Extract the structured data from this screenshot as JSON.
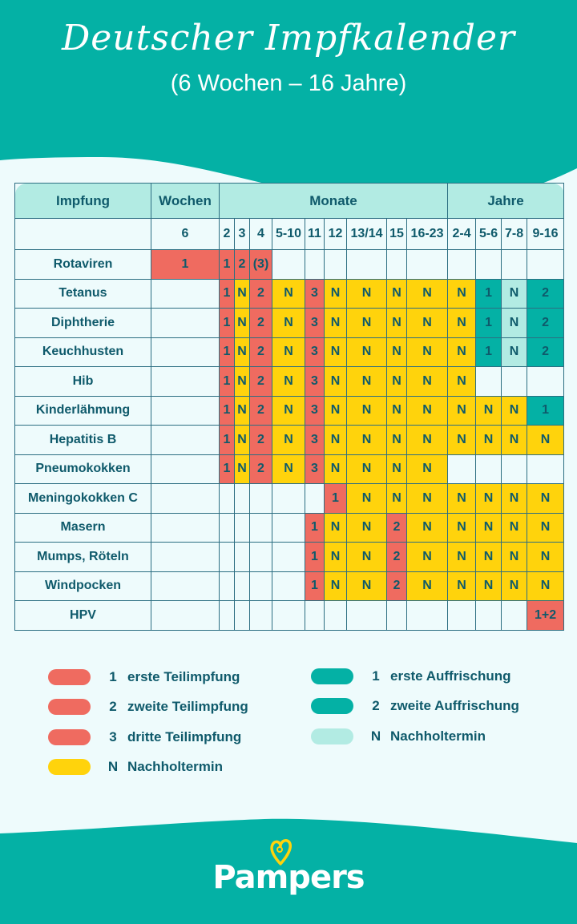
{
  "header": {
    "title": "Deutscher Impfkalender",
    "subtitle": "(6 Wochen – 16 Jahre)"
  },
  "colors": {
    "header_teal": "#04b1a5",
    "background": "#eefbfc",
    "header_cell": "#b2ebe3",
    "text_dark": "#0f5a6b",
    "grundimmunisierung_red": "#ef6b60",
    "nachholtermin_yellow": "#ffd30c",
    "auffrischung_teal": "#04b1a5",
    "auffrischung_nachhol_light": "#b2ebe3"
  },
  "table": {
    "group_headers": {
      "impfung": "Impfung",
      "wochen": "Wochen",
      "monate": "Monate",
      "jahre": "Jahre"
    },
    "sub_headers": [
      "6",
      "2",
      "3",
      "4",
      "5-10",
      "11",
      "12",
      "13/14",
      "15",
      "16-23",
      "2-4",
      "5-6",
      "7-8",
      "9-16"
    ]
  },
  "chart_data": {
    "type": "table",
    "title": "Deutscher Impfkalender (6 Wochen – 16 Jahre)",
    "column_groups": [
      {
        "label": "Wochen",
        "columns": [
          "6"
        ]
      },
      {
        "label": "Monate",
        "columns": [
          "2",
          "3",
          "4",
          "5-10",
          "11",
          "12",
          "13/14",
          "15",
          "16-23"
        ]
      },
      {
        "label": "Jahre",
        "columns": [
          "2-4",
          "5-6",
          "7-8",
          "9-16"
        ]
      }
    ],
    "columns": [
      "6",
      "2",
      "3",
      "4",
      "5-10",
      "11",
      "12",
      "13/14",
      "15",
      "16-23",
      "2-4",
      "5-6",
      "7-8",
      "9-16"
    ],
    "cell_code_legend": {
      "r": "Grundimmunisierung (rot)",
      "y": "Nachholtermin Grundimmunisierung (gelb)",
      "t": "Auffrischung (türkis)",
      "l": "Nachholtermin Auffrischung (helltürkis)",
      "e": "leer"
    },
    "rows": [
      {
        "name": "Rotaviren",
        "cells": [
          [
            "1",
            "r"
          ],
          [
            "1",
            "r"
          ],
          [
            "2",
            "r"
          ],
          [
            "(3)",
            "r"
          ],
          [
            "",
            "e"
          ],
          [
            "",
            "e"
          ],
          [
            "",
            "e"
          ],
          [
            "",
            "e"
          ],
          [
            "",
            "e"
          ],
          [
            "",
            "e"
          ],
          [
            "",
            "e"
          ],
          [
            "",
            "e"
          ],
          [
            "",
            "e"
          ],
          [
            "",
            "e"
          ]
        ]
      },
      {
        "name": "Tetanus",
        "cells": [
          [
            "",
            "e"
          ],
          [
            "1",
            "r"
          ],
          [
            "N",
            "y"
          ],
          [
            "2",
            "r"
          ],
          [
            "N",
            "y"
          ],
          [
            "3",
            "r"
          ],
          [
            "N",
            "y"
          ],
          [
            "N",
            "y"
          ],
          [
            "N",
            "y"
          ],
          [
            "N",
            "y"
          ],
          [
            "N",
            "y"
          ],
          [
            "1",
            "t"
          ],
          [
            "N",
            "l"
          ],
          [
            "2",
            "t"
          ]
        ]
      },
      {
        "name": "Diphtherie",
        "cells": [
          [
            "",
            "e"
          ],
          [
            "1",
            "r"
          ],
          [
            "N",
            "y"
          ],
          [
            "2",
            "r"
          ],
          [
            "N",
            "y"
          ],
          [
            "3",
            "r"
          ],
          [
            "N",
            "y"
          ],
          [
            "N",
            "y"
          ],
          [
            "N",
            "y"
          ],
          [
            "N",
            "y"
          ],
          [
            "N",
            "y"
          ],
          [
            "1",
            "t"
          ],
          [
            "N",
            "l"
          ],
          [
            "2",
            "t"
          ]
        ]
      },
      {
        "name": "Keuchhusten",
        "cells": [
          [
            "",
            "e"
          ],
          [
            "1",
            "r"
          ],
          [
            "N",
            "y"
          ],
          [
            "2",
            "r"
          ],
          [
            "N",
            "y"
          ],
          [
            "3",
            "r"
          ],
          [
            "N",
            "y"
          ],
          [
            "N",
            "y"
          ],
          [
            "N",
            "y"
          ],
          [
            "N",
            "y"
          ],
          [
            "N",
            "y"
          ],
          [
            "1",
            "t"
          ],
          [
            "N",
            "l"
          ],
          [
            "2",
            "t"
          ]
        ]
      },
      {
        "name": "Hib",
        "cells": [
          [
            "",
            "e"
          ],
          [
            "1",
            "r"
          ],
          [
            "N",
            "y"
          ],
          [
            "2",
            "r"
          ],
          [
            "N",
            "y"
          ],
          [
            "3",
            "r"
          ],
          [
            "N",
            "y"
          ],
          [
            "N",
            "y"
          ],
          [
            "N",
            "y"
          ],
          [
            "N",
            "y"
          ],
          [
            "N",
            "y"
          ],
          [
            "",
            "e"
          ],
          [
            "",
            "e"
          ],
          [
            "",
            "e"
          ]
        ]
      },
      {
        "name": "Kinderlähmung",
        "cells": [
          [
            "",
            "e"
          ],
          [
            "1",
            "r"
          ],
          [
            "N",
            "y"
          ],
          [
            "2",
            "r"
          ],
          [
            "N",
            "y"
          ],
          [
            "3",
            "r"
          ],
          [
            "N",
            "y"
          ],
          [
            "N",
            "y"
          ],
          [
            "N",
            "y"
          ],
          [
            "N",
            "y"
          ],
          [
            "N",
            "y"
          ],
          [
            "N",
            "y"
          ],
          [
            "N",
            "y"
          ],
          [
            "1",
            "t"
          ]
        ]
      },
      {
        "name": "Hepatitis B",
        "cells": [
          [
            "",
            "e"
          ],
          [
            "1",
            "r"
          ],
          [
            "N",
            "y"
          ],
          [
            "2",
            "r"
          ],
          [
            "N",
            "y"
          ],
          [
            "3",
            "r"
          ],
          [
            "N",
            "y"
          ],
          [
            "N",
            "y"
          ],
          [
            "N",
            "y"
          ],
          [
            "N",
            "y"
          ],
          [
            "N",
            "y"
          ],
          [
            "N",
            "y"
          ],
          [
            "N",
            "y"
          ],
          [
            "N",
            "y"
          ]
        ]
      },
      {
        "name": "Pneumokokken",
        "cells": [
          [
            "",
            "e"
          ],
          [
            "1",
            "r"
          ],
          [
            "N",
            "y"
          ],
          [
            "2",
            "r"
          ],
          [
            "N",
            "y"
          ],
          [
            "3",
            "r"
          ],
          [
            "N",
            "y"
          ],
          [
            "N",
            "y"
          ],
          [
            "N",
            "y"
          ],
          [
            "N",
            "y"
          ],
          [
            "",
            "e"
          ],
          [
            "",
            "e"
          ],
          [
            "",
            "e"
          ],
          [
            "",
            "e"
          ]
        ]
      },
      {
        "name": "Meningokokken C",
        "cells": [
          [
            "",
            "e"
          ],
          [
            "",
            "e"
          ],
          [
            "",
            "e"
          ],
          [
            "",
            "e"
          ],
          [
            "",
            "e"
          ],
          [
            "",
            "e"
          ],
          [
            "1",
            "r"
          ],
          [
            "N",
            "y"
          ],
          [
            "N",
            "y"
          ],
          [
            "N",
            "y"
          ],
          [
            "N",
            "y"
          ],
          [
            "N",
            "y"
          ],
          [
            "N",
            "y"
          ],
          [
            "N",
            "y"
          ]
        ]
      },
      {
        "name": "Masern",
        "cells": [
          [
            "",
            "e"
          ],
          [
            "",
            "e"
          ],
          [
            "",
            "e"
          ],
          [
            "",
            "e"
          ],
          [
            "",
            "e"
          ],
          [
            "1",
            "r"
          ],
          [
            "N",
            "y"
          ],
          [
            "N",
            "y"
          ],
          [
            "2",
            "r"
          ],
          [
            "N",
            "y"
          ],
          [
            "N",
            "y"
          ],
          [
            "N",
            "y"
          ],
          [
            "N",
            "y"
          ],
          [
            "N",
            "y"
          ]
        ]
      },
      {
        "name": "Mumps, Röteln",
        "cells": [
          [
            "",
            "e"
          ],
          [
            "",
            "e"
          ],
          [
            "",
            "e"
          ],
          [
            "",
            "e"
          ],
          [
            "",
            "e"
          ],
          [
            "1",
            "r"
          ],
          [
            "N",
            "y"
          ],
          [
            "N",
            "y"
          ],
          [
            "2",
            "r"
          ],
          [
            "N",
            "y"
          ],
          [
            "N",
            "y"
          ],
          [
            "N",
            "y"
          ],
          [
            "N",
            "y"
          ],
          [
            "N",
            "y"
          ]
        ]
      },
      {
        "name": "Windpocken",
        "cells": [
          [
            "",
            "e"
          ],
          [
            "",
            "e"
          ],
          [
            "",
            "e"
          ],
          [
            "",
            "e"
          ],
          [
            "",
            "e"
          ],
          [
            "1",
            "r"
          ],
          [
            "N",
            "y"
          ],
          [
            "N",
            "y"
          ],
          [
            "2",
            "r"
          ],
          [
            "N",
            "y"
          ],
          [
            "N",
            "y"
          ],
          [
            "N",
            "y"
          ],
          [
            "N",
            "y"
          ],
          [
            "N",
            "y"
          ]
        ]
      },
      {
        "name": "HPV",
        "cells": [
          [
            "",
            "e"
          ],
          [
            "",
            "e"
          ],
          [
            "",
            "e"
          ],
          [
            "",
            "e"
          ],
          [
            "",
            "e"
          ],
          [
            "",
            "e"
          ],
          [
            "",
            "e"
          ],
          [
            "",
            "e"
          ],
          [
            "",
            "e"
          ],
          [
            "",
            "e"
          ],
          [
            "",
            "e"
          ],
          [
            "",
            "e"
          ],
          [
            "",
            "e"
          ],
          [
            "1+2",
            "r"
          ]
        ]
      }
    ]
  },
  "legend": {
    "left": [
      {
        "key": "1",
        "label": "erste Teilimpfung",
        "color": "#ef6b60"
      },
      {
        "key": "2",
        "label": "zweite Teilimpfung",
        "color": "#ef6b60"
      },
      {
        "key": "3",
        "label": "dritte Teilimpfung",
        "color": "#ef6b60"
      },
      {
        "key": "N",
        "label": "Nachholtermin",
        "color": "#ffd30c"
      }
    ],
    "right": [
      {
        "key": "1",
        "label": "erste Auffrischung",
        "color": "#04b1a5"
      },
      {
        "key": "2",
        "label": "zweite Auffrischung",
        "color": "#04b1a5"
      },
      {
        "key": "N",
        "label": "Nachholtermin",
        "color": "#b2ebe3"
      }
    ]
  },
  "footer": {
    "brand": "Pampers"
  }
}
